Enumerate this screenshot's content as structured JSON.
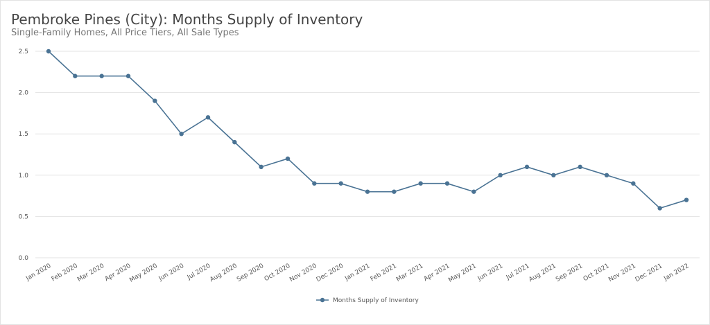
{
  "chart_data": {
    "type": "line",
    "title": "Pembroke Pines (City): Months Supply of Inventory",
    "subtitle": "Single-Family Homes, All Price Tiers, All Sale Types",
    "categories": [
      "Jan 2020",
      "Feb 2020",
      "Mar 2020",
      "Apr 2020",
      "May 2020",
      "Jun 2020",
      "Jul 2020",
      "Aug 2020",
      "Sep 2020",
      "Oct 2020",
      "Nov 2020",
      "Dec 2020",
      "Jan 2021",
      "Feb 2021",
      "Mar 2021",
      "Apr 2021",
      "May 2021",
      "Jun 2021",
      "Jul 2021",
      "Aug 2021",
      "Sep 2021",
      "Oct 2021",
      "Nov 2021",
      "Dec 2021",
      "Jan 2022"
    ],
    "series": [
      {
        "name": "Months Supply of Inventory",
        "color": "#4a7394",
        "values": [
          2.5,
          2.2,
          2.2,
          2.2,
          1.9,
          1.5,
          1.7,
          1.4,
          1.1,
          1.2,
          0.9,
          0.9,
          0.8,
          0.8,
          0.9,
          0.9,
          0.8,
          1.0,
          1.1,
          1.0,
          1.1,
          1.0,
          0.9,
          0.6,
          0.7
        ]
      }
    ],
    "yticks": [
      "0.0",
      "0.5",
      "1.0",
      "1.5",
      "2.0",
      "2.5"
    ],
    "ylim": [
      0,
      2.5
    ],
    "grid": true,
    "legend": "bottom-center"
  }
}
